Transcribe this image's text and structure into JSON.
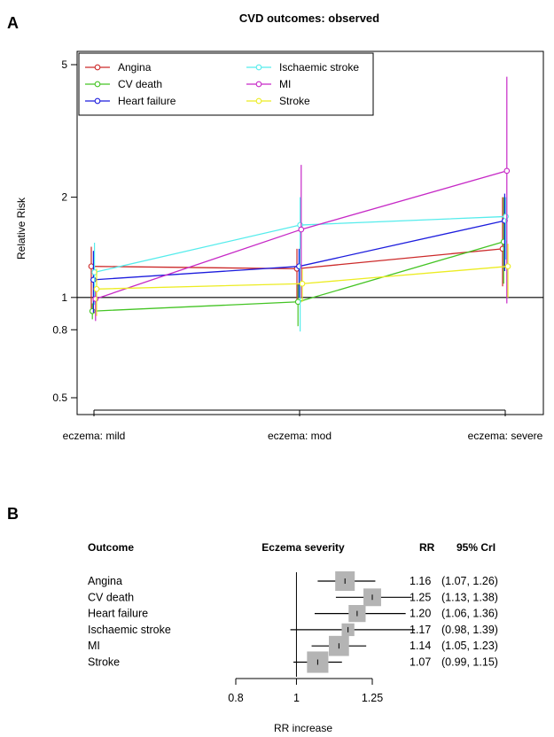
{
  "panels": {
    "a_label": "A",
    "b_label": "B"
  },
  "chart_data": [
    {
      "type": "line",
      "title": "CVD outcomes: observed",
      "ylabel": "Relative Risk",
      "xlabel": "",
      "y_scale": "log",
      "ylim": [
        0.5,
        5
      ],
      "y_ticks": [
        0.5,
        0.8,
        1,
        2,
        5
      ],
      "y_tick_labels": [
        "0.5",
        "0.8",
        "1",
        "2",
        "5"
      ],
      "reference_line": 1,
      "categories": [
        "eczema: mild",
        "eczema: mod",
        "eczema: severe"
      ],
      "legend_position": "top-left",
      "series": [
        {
          "name": "Angina",
          "color": "#cc2a2a",
          "values": [
            1.24,
            1.22,
            1.4
          ],
          "lower": [
            0.91,
            0.98,
            1.08
          ],
          "upper": [
            1.42,
            1.4,
            2.0
          ]
        },
        {
          "name": "CV death",
          "color": "#44c424",
          "values": [
            0.91,
            0.97,
            1.47
          ],
          "lower": [
            0.86,
            0.82,
            1.1
          ],
          "upper": [
            0.96,
            1.1,
            2.0
          ]
        },
        {
          "name": "Heart failure",
          "color": "#1c1cdd",
          "values": [
            1.13,
            1.24,
            1.7
          ],
          "lower": [
            0.9,
            1.0,
            1.2
          ],
          "upper": [
            1.38,
            1.4,
            2.05
          ]
        },
        {
          "name": "Ischaemic stroke",
          "color": "#55ecec",
          "values": [
            1.19,
            1.65,
            1.75
          ],
          "lower": [
            0.95,
            0.79,
            1.3
          ],
          "upper": [
            1.46,
            2.0,
            2.0
          ]
        },
        {
          "name": "MI",
          "color": "#c628c6",
          "values": [
            0.99,
            1.6,
            2.4
          ],
          "lower": [
            0.85,
            1.0,
            0.96
          ],
          "upper": [
            1.05,
            2.5,
            4.6
          ]
        },
        {
          "name": "Stroke",
          "color": "#ecec22",
          "values": [
            1.06,
            1.1,
            1.24
          ],
          "lower": [
            0.88,
            0.97,
            1.0
          ],
          "upper": [
            1.22,
            1.22,
            1.45
          ]
        }
      ]
    },
    {
      "type": "forest",
      "xlabel": "RR increase",
      "xlim": [
        0.8,
        1.25
      ],
      "x_ticks": [
        0.8,
        1,
        1.25
      ],
      "x_tick_labels": [
        "0.8",
        "1",
        "1.25"
      ],
      "reference_line": 1,
      "headers": {
        "outcome": "Outcome",
        "plot": "Eczema severity",
        "rr": "RR",
        "cri": "95% CrI"
      },
      "rows": [
        {
          "outcome": "Angina",
          "rr": 1.16,
          "lower": 1.07,
          "upper": 1.26,
          "rr_text": "1.16",
          "ci_text": "(1.07, 1.26)",
          "weight": 1.0
        },
        {
          "outcome": "CV death",
          "rr": 1.25,
          "lower": 1.13,
          "upper": 1.38,
          "rr_text": "1.25",
          "ci_text": "(1.13, 1.38)",
          "weight": 0.85
        },
        {
          "outcome": "Heart failure",
          "rr": 1.2,
          "lower": 1.06,
          "upper": 1.36,
          "rr_text": "1.20",
          "ci_text": "(1.06, 1.36)",
          "weight": 0.8
        },
        {
          "outcome": "Ischaemic stroke",
          "rr": 1.17,
          "lower": 0.98,
          "upper": 1.39,
          "rr_text": "1.17",
          "ci_text": "(0.98, 1.39)",
          "weight": 0.45
        },
        {
          "outcome": "MI",
          "rr": 1.14,
          "lower": 1.05,
          "upper": 1.23,
          "rr_text": "1.14",
          "ci_text": "(1.05, 1.23)",
          "weight": 1.05
        },
        {
          "outcome": "Stroke",
          "rr": 1.07,
          "lower": 0.99,
          "upper": 1.15,
          "rr_text": "1.07",
          "ci_text": "(0.99, 1.15)",
          "weight": 1.15
        }
      ]
    }
  ]
}
